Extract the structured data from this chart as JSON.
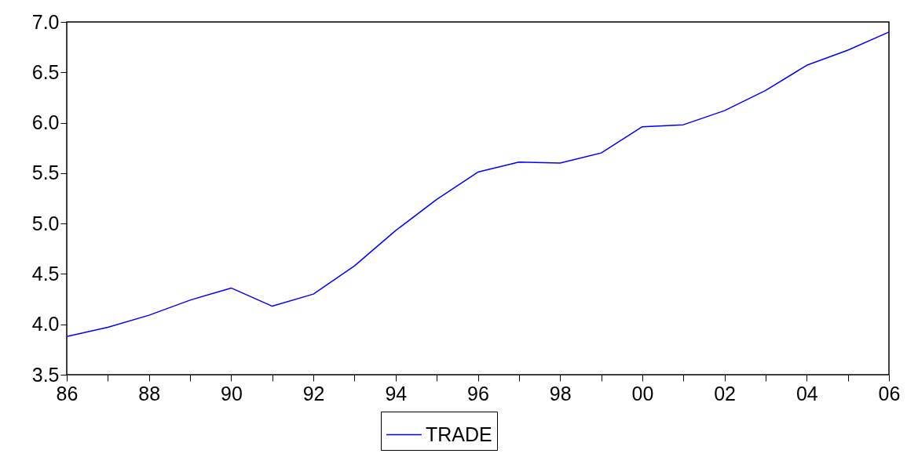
{
  "chart_data": {
    "type": "line",
    "x": [
      1986,
      1987,
      1988,
      1989,
      1990,
      1991,
      1992,
      1993,
      1994,
      1995,
      1996,
      1997,
      1998,
      1999,
      2000,
      2001,
      2002,
      2003,
      2004,
      2005,
      2006
    ],
    "series": [
      {
        "name": "TRADE",
        "color": "#0000ff",
        "values": [
          3.88,
          3.97,
          4.09,
          4.24,
          4.36,
          4.18,
          4.3,
          4.58,
          4.93,
          5.24,
          5.51,
          5.61,
          5.6,
          5.7,
          5.96,
          5.98,
          6.12,
          6.32,
          6.57,
          6.72,
          6.9
        ]
      }
    ],
    "xlim": [
      1986,
      2006
    ],
    "xticks": [
      {
        "value": 1986,
        "label": "86"
      },
      {
        "value": 1987,
        "label": null
      },
      {
        "value": 1988,
        "label": "88"
      },
      {
        "value": 1989,
        "label": null
      },
      {
        "value": 1990,
        "label": "90"
      },
      {
        "value": 1991,
        "label": null
      },
      {
        "value": 1992,
        "label": "92"
      },
      {
        "value": 1993,
        "label": null
      },
      {
        "value": 1994,
        "label": "94"
      },
      {
        "value": 1995,
        "label": null
      },
      {
        "value": 1996,
        "label": "96"
      },
      {
        "value": 1997,
        "label": null
      },
      {
        "value": 1998,
        "label": "98"
      },
      {
        "value": 1999,
        "label": null
      },
      {
        "value": 2000,
        "label": "00"
      },
      {
        "value": 2001,
        "label": null
      },
      {
        "value": 2002,
        "label": "02"
      },
      {
        "value": 2003,
        "label": null
      },
      {
        "value": 2004,
        "label": "04"
      },
      {
        "value": 2005,
        "label": null
      },
      {
        "value": 2006,
        "label": "06"
      }
    ],
    "ylim": [
      3.5,
      7.0
    ],
    "yticks": [
      {
        "value": 3.5,
        "label": "3.5"
      },
      {
        "value": 4.0,
        "label": "4.0"
      },
      {
        "value": 4.5,
        "label": "4.5"
      },
      {
        "value": 5.0,
        "label": "5.0"
      },
      {
        "value": 5.5,
        "label": "5.5"
      },
      {
        "value": 6.0,
        "label": "6.0"
      },
      {
        "value": 6.5,
        "label": "6.5"
      },
      {
        "value": 7.0,
        "label": "7.0"
      }
    ],
    "grid": false,
    "legend": "bottom",
    "line_style": "solid",
    "marker": "none"
  }
}
